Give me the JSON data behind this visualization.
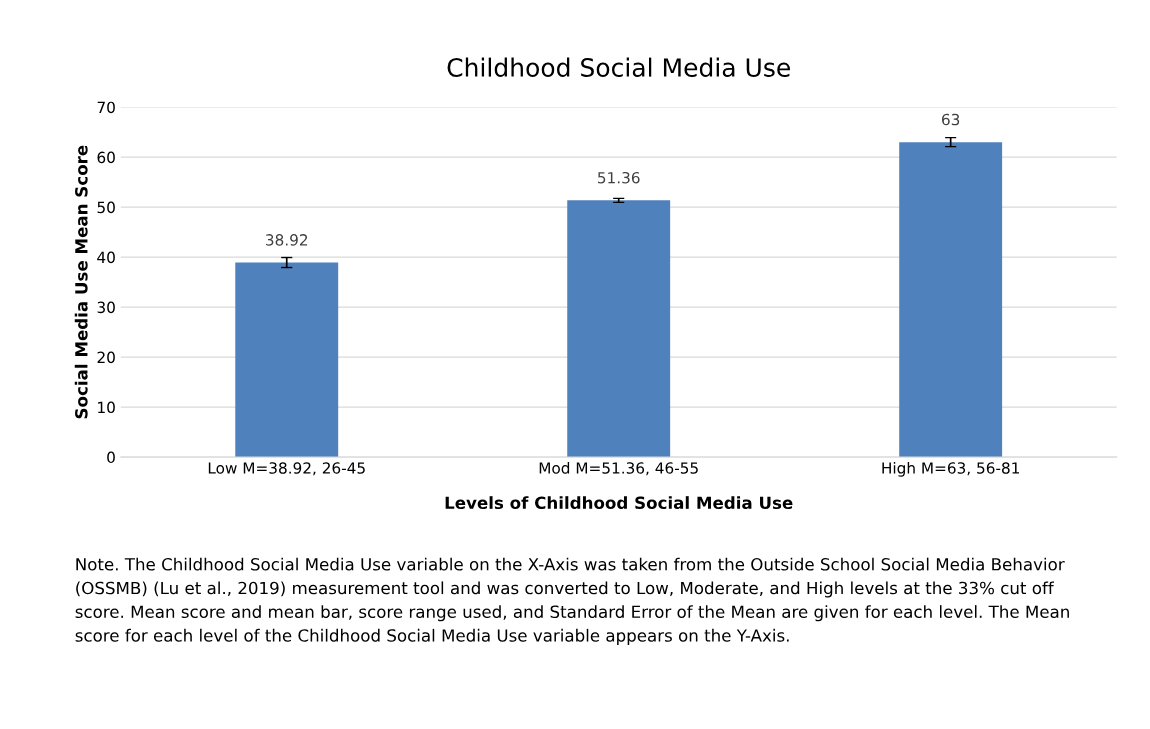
{
  "chart_data": {
    "type": "bar",
    "title": "Childhood Social Media Use",
    "xlabel": "Levels of Childhood Social Media Use",
    "ylabel": "Social Media Use Mean Score",
    "categories": [
      "Low M=38.92, 26-45",
      "Mod M=51.36, 46-55",
      "High M=63, 56-81"
    ],
    "values": [
      38.92,
      51.36,
      63
    ],
    "errors": [
      1.0,
      0.4,
      0.9
    ],
    "color": "#4f81bd",
    "value_labels": [
      "38.92",
      "51.36",
      "63"
    ],
    "ylim": [
      0,
      70
    ],
    "yticks": [
      0,
      10,
      20,
      30,
      40,
      50,
      60,
      70
    ],
    "grid": "y",
    "legend": false,
    "annotations": [
      "Note. The Childhood Social Media Use variable on the X-Axis was taken from the Outside School Social Media Behavior (OSSMB) (Lu et al., 2019) measurement tool and was converted to Low, Moderate, and High levels at the 33% cut off score. Mean score and mean bar, score range used, and Standard Error of the Mean are given for each level. The Mean score for each level of the Childhood Social Media Use variable appears on the Y-Axis."
    ]
  }
}
